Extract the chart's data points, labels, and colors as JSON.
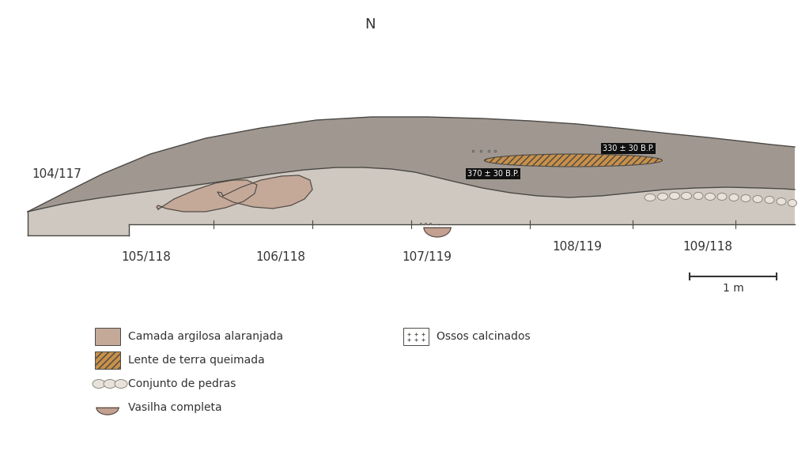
{
  "title_N": "N",
  "bg_color": "#ffffff",
  "c_dark": "#a09890",
  "c_light": "#cec8c0",
  "c_blob": "#c4a898",
  "c_lente_fill": "#c8904a",
  "c_outline": "#4a4845",
  "c_stone_fill": "#e8e2da",
  "c_stone_edge": "#888880",
  "c_vessel": "#c4a090",
  "c_white": "#ffffff",
  "label_104": "104/117",
  "label_105": "105/118",
  "label_106": "106/118",
  "label_107": "107/119",
  "label_108": "108/119",
  "label_109": "109/118",
  "date1": "330 ± 30 B.P.",
  "date2": "370 ± 30 B.P.",
  "scale_label": "1 m",
  "legend_camada": "Camada argilosa alaranjada",
  "legend_lente": "Lente de terra queimada",
  "legend_conjunto": "Conjunto de pedras",
  "legend_vasilha": "Vasilha completa",
  "legend_ossos": "Ossos calcinados"
}
